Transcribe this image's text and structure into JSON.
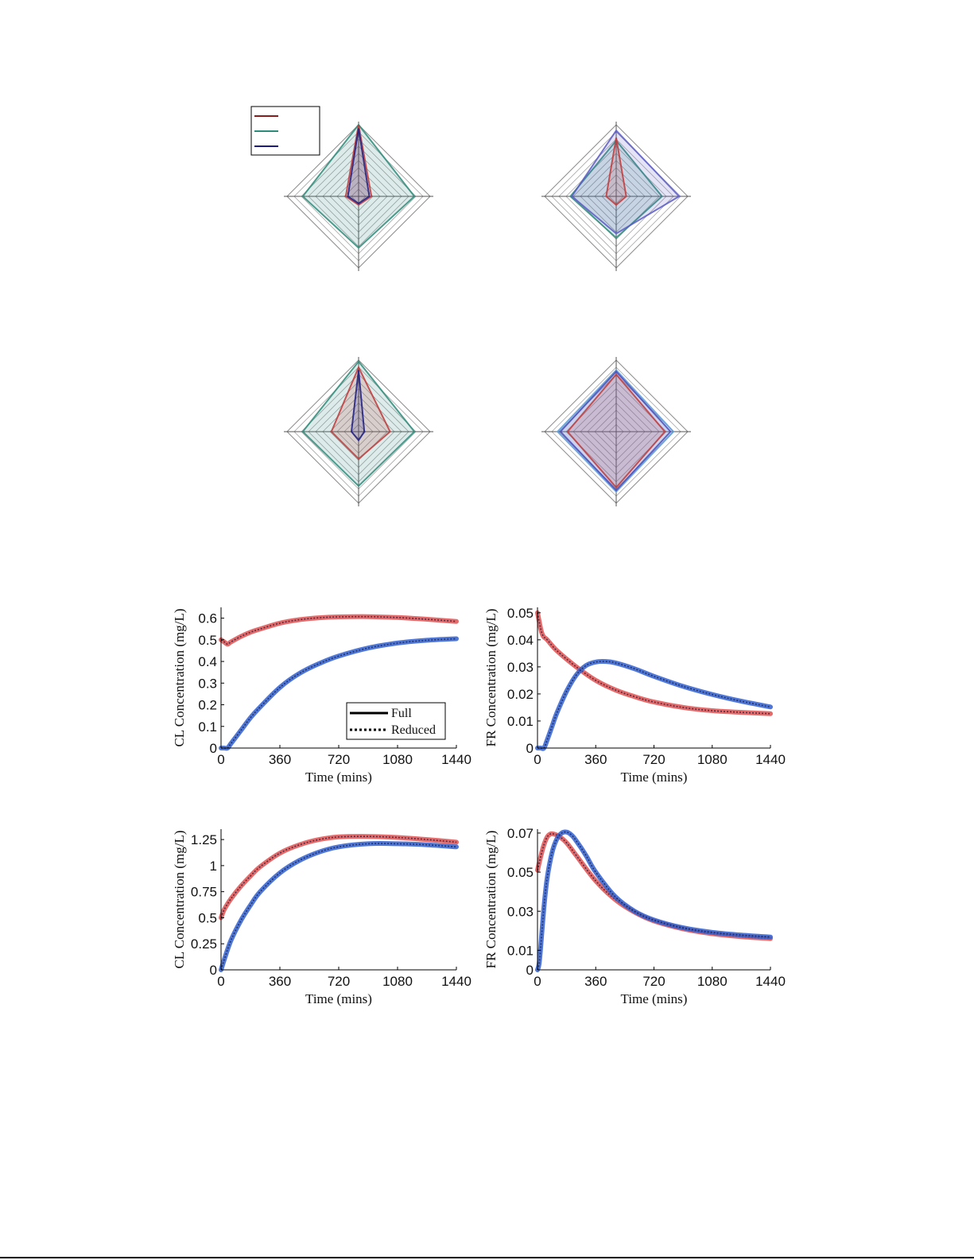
{
  "chart_data": [
    {
      "type": "radar",
      "axes": 4,
      "rings": 10,
      "r_max": 1,
      "legend": {
        "placement": "top-left",
        "entries": [
          {
            "color": "#8b1a1a"
          },
          {
            "color": "#2e8b7a"
          },
          {
            "color": "#1c1c80"
          }
        ]
      },
      "series": [
        {
          "color": "#2e8b7a",
          "values": [
            1.0,
            0.78,
            0.72,
            0.78
          ]
        },
        {
          "color": "#c0393b",
          "values": [
            1.0,
            0.18,
            0.12,
            0.18
          ]
        },
        {
          "color": "#1c1c80",
          "values": [
            0.95,
            0.15,
            0.1,
            0.15
          ]
        }
      ]
    },
    {
      "type": "radar",
      "axes": 4,
      "rings": 10,
      "r_max": 1,
      "series": [
        {
          "color": "#2e8b7a",
          "values": [
            0.78,
            0.64,
            0.58,
            0.64
          ]
        },
        {
          "color": "#5a5ac8",
          "values": [
            0.92,
            0.88,
            0.52,
            0.62
          ]
        },
        {
          "color": "#c0393b",
          "values": [
            0.82,
            0.14,
            0.12,
            0.14
          ]
        }
      ]
    },
    {
      "type": "radar",
      "axes": 4,
      "rings": 10,
      "r_max": 1,
      "series": [
        {
          "color": "#2e8b7a",
          "values": [
            0.98,
            0.78,
            0.76,
            0.78
          ]
        },
        {
          "color": "#c0393b",
          "values": [
            0.9,
            0.44,
            0.38,
            0.38
          ]
        },
        {
          "color": "#1c1c80",
          "values": [
            0.86,
            0.08,
            0.12,
            0.1
          ]
        }
      ]
    },
    {
      "type": "radar",
      "axes": 4,
      "rings": 10,
      "r_max": 1,
      "series": [
        {
          "color": "#5a9bd8",
          "values": [
            0.86,
            0.8,
            0.84,
            0.82
          ]
        },
        {
          "color": "#4a4ab8",
          "values": [
            0.84,
            0.76,
            0.82,
            0.78
          ]
        },
        {
          "color": "#c0393b",
          "values": [
            0.8,
            0.68,
            0.78,
            0.68
          ]
        }
      ]
    },
    {
      "type": "line",
      "ylabel": "CL Concentration (mg/L)",
      "xlabel": "Time (mins)",
      "xlim": [
        0,
        1440
      ],
      "ylim": [
        0,
        0.65
      ],
      "xticks": [
        0,
        360,
        720,
        1080,
        1440
      ],
      "yticks": [
        0,
        0.1,
        0.2,
        0.3,
        0.4,
        0.5,
        0.6
      ],
      "ytick_labels": [
        "0",
        "0.1",
        "0.2",
        "0.3",
        "0.4",
        "0.5",
        "0.6"
      ],
      "legend": {
        "placement": "bottom-right",
        "entries": [
          {
            "label": "Full",
            "style": "solid"
          },
          {
            "label": "Reduced",
            "style": "dotted"
          }
        ]
      },
      "series": [
        {
          "color": "#e05050",
          "x": [
            0,
            20,
            40,
            60,
            120,
            180,
            240,
            360,
            480,
            600,
            720,
            900,
            1080,
            1260,
            1440
          ],
          "y": [
            0.5,
            0.49,
            0.48,
            0.49,
            0.515,
            0.535,
            0.55,
            0.577,
            0.593,
            0.602,
            0.606,
            0.607,
            0.603,
            0.595,
            0.585
          ]
        },
        {
          "color": "#2f5fd0",
          "x": [
            0,
            20,
            40,
            60,
            120,
            180,
            240,
            360,
            480,
            600,
            720,
            900,
            1080,
            1260,
            1440
          ],
          "y": [
            0,
            0,
            0,
            0.02,
            0.08,
            0.14,
            0.19,
            0.28,
            0.345,
            0.39,
            0.425,
            0.462,
            0.485,
            0.498,
            0.505
          ]
        }
      ]
    },
    {
      "type": "line",
      "ylabel": "FR Concentration (mg/L)",
      "xlabel": "Time (mins)",
      "xlim": [
        0,
        1440
      ],
      "ylim": [
        0,
        0.052
      ],
      "xticks": [
        0,
        360,
        720,
        1080,
        1440
      ],
      "yticks": [
        0,
        0.01,
        0.02,
        0.03,
        0.04,
        0.05
      ],
      "ytick_labels": [
        "0",
        "0.01",
        "0.02",
        "0.03",
        "0.04",
        "0.05"
      ],
      "series": [
        {
          "color": "#e05050",
          "x": [
            0,
            10,
            20,
            30,
            40,
            60,
            120,
            240,
            360,
            480,
            600,
            720,
            900,
            1080,
            1260,
            1440
          ],
          "y": [
            0.05,
            0.047,
            0.044,
            0.042,
            0.041,
            0.04,
            0.036,
            0.03,
            0.025,
            0.0215,
            0.019,
            0.017,
            0.015,
            0.0138,
            0.0132,
            0.0127
          ]
        },
        {
          "color": "#2f5fd0",
          "x": [
            0,
            20,
            40,
            60,
            90,
            120,
            180,
            240,
            300,
            360,
            420,
            480,
            600,
            720,
            900,
            1080,
            1260,
            1440
          ],
          "y": [
            0,
            0,
            0,
            0.003,
            0.008,
            0.013,
            0.021,
            0.027,
            0.0305,
            0.0318,
            0.032,
            0.0315,
            0.0293,
            0.0265,
            0.0228,
            0.0198,
            0.0173,
            0.0152
          ]
        }
      ]
    },
    {
      "type": "line",
      "ylabel": "CL Concentration (mg/L)",
      "xlabel": "Time (mins)",
      "xlim": [
        0,
        1440
      ],
      "ylim": [
        0,
        1.35
      ],
      "xticks": [
        0,
        360,
        720,
        1080,
        1440
      ],
      "yticks": [
        0,
        0.25,
        0.5,
        0.75,
        1,
        1.25
      ],
      "ytick_labels": [
        "0",
        "0.25",
        "0.5",
        "0.75",
        "1",
        "1.25"
      ],
      "series": [
        {
          "color": "#e05050",
          "x": [
            0,
            20,
            60,
            120,
            180,
            240,
            360,
            480,
            600,
            720,
            900,
            1080,
            1260,
            1440
          ],
          "y": [
            0.5,
            0.58,
            0.68,
            0.8,
            0.9,
            0.99,
            1.12,
            1.2,
            1.25,
            1.275,
            1.28,
            1.27,
            1.25,
            1.225
          ]
        },
        {
          "color": "#2f5fd0",
          "x": [
            0,
            20,
            60,
            120,
            180,
            240,
            360,
            480,
            600,
            720,
            900,
            1080,
            1260,
            1440
          ],
          "y": [
            0,
            0.1,
            0.28,
            0.47,
            0.62,
            0.75,
            0.93,
            1.05,
            1.13,
            1.18,
            1.21,
            1.21,
            1.2,
            1.18
          ]
        }
      ]
    },
    {
      "type": "line",
      "ylabel": "FR Concentration (mg/L)",
      "xlabel": "Time (mins)",
      "xlim": [
        0,
        1440
      ],
      "ylim": [
        0,
        0.072
      ],
      "xticks": [
        0,
        360,
        720,
        1080,
        1440
      ],
      "yticks": [
        0,
        0.01,
        0.03,
        0.05,
        0.07
      ],
      "ytick_labels": [
        "0",
        "0.01",
        "0.03",
        "0.05",
        "0.07"
      ],
      "series": [
        {
          "color": "#e05050",
          "x": [
            0,
            20,
            40,
            60,
            80,
            100,
            130,
            180,
            240,
            360,
            480,
            600,
            720,
            900,
            1080,
            1260,
            1440
          ],
          "y": [
            0.051,
            0.058,
            0.064,
            0.068,
            0.0695,
            0.0695,
            0.0685,
            0.065,
            0.0585,
            0.0455,
            0.036,
            0.0295,
            0.025,
            0.021,
            0.0185,
            0.017,
            0.016
          ]
        },
        {
          "color": "#2f5fd0",
          "x": [
            0,
            10,
            20,
            40,
            60,
            90,
            120,
            150,
            180,
            210,
            240,
            300,
            360,
            480,
            600,
            720,
            900,
            1080,
            1260,
            1440
          ],
          "y": [
            0,
            0.003,
            0.012,
            0.032,
            0.047,
            0.06,
            0.067,
            0.07,
            0.0705,
            0.069,
            0.066,
            0.0585,
            0.05,
            0.0375,
            0.03,
            0.0255,
            0.0215,
            0.0192,
            0.0178,
            0.0168
          ]
        }
      ]
    }
  ]
}
